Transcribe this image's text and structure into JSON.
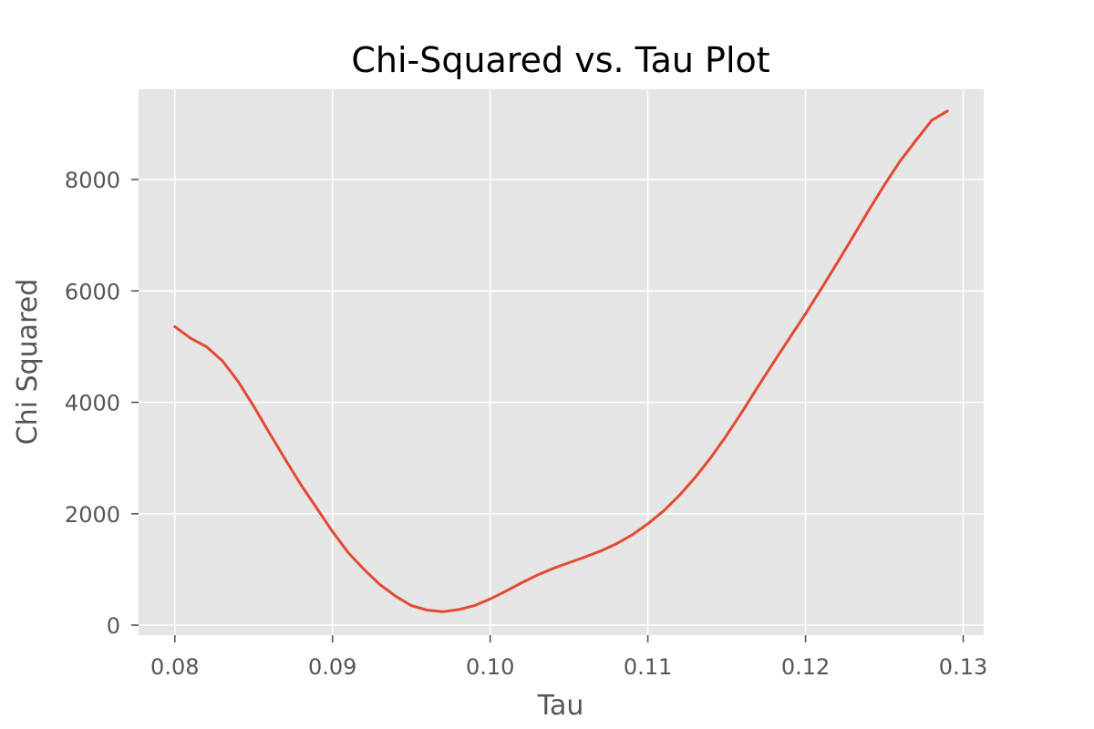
{
  "chart_data": {
    "type": "line",
    "title": "Chi-Squared vs. Tau Plot",
    "xlabel": "Tau",
    "ylabel": "Chi Squared",
    "xlim": [
      0.0777,
      0.1313
    ],
    "ylim": [
      -180,
      9620
    ],
    "x_ticks": [
      0.08,
      0.09,
      0.1,
      0.11,
      0.12,
      0.13
    ],
    "x_tick_labels": [
      "0.08",
      "0.09",
      "0.10",
      "0.11",
      "0.12",
      "0.13"
    ],
    "y_ticks": [
      0,
      2000,
      4000,
      6000,
      8000
    ],
    "y_tick_labels": [
      "0",
      "2000",
      "4000",
      "6000",
      "8000"
    ],
    "grid": true,
    "legend": "none",
    "style": "ggplot",
    "colors": {
      "plot_background": "#e5e5e5",
      "grid": "#ffffff",
      "line": "#e24a33",
      "tick_text": "#555555",
      "title_text": "#000000"
    },
    "series": [
      {
        "x": [
          0.08,
          0.081,
          0.082,
          0.083,
          0.084,
          0.085,
          0.086,
          0.087,
          0.088,
          0.089,
          0.09,
          0.091,
          0.092,
          0.093,
          0.094,
          0.095,
          0.096,
          0.097,
          0.098,
          0.099,
          0.1,
          0.101,
          0.102,
          0.103,
          0.104,
          0.105,
          0.106,
          0.107,
          0.108,
          0.109,
          0.11,
          0.111,
          0.112,
          0.113,
          0.114,
          0.115,
          0.116,
          0.117,
          0.118,
          0.119,
          0.12,
          0.121,
          0.122,
          0.123,
          0.124,
          0.125,
          0.126,
          0.127,
          0.128,
          0.129
        ],
        "y": [
          5360,
          5150,
          5000,
          4750,
          4380,
          3930,
          3450,
          2980,
          2520,
          2100,
          1680,
          1300,
          1000,
          730,
          520,
          350,
          270,
          240,
          280,
          350,
          470,
          610,
          760,
          900,
          1020,
          1120,
          1220,
          1330,
          1460,
          1620,
          1820,
          2050,
          2330,
          2650,
          3010,
          3410,
          3840,
          4290,
          4730,
          5160,
          5590,
          6040,
          6500,
          6970,
          7440,
          7900,
          8330,
          8700,
          9060,
          9230
        ]
      }
    ]
  }
}
